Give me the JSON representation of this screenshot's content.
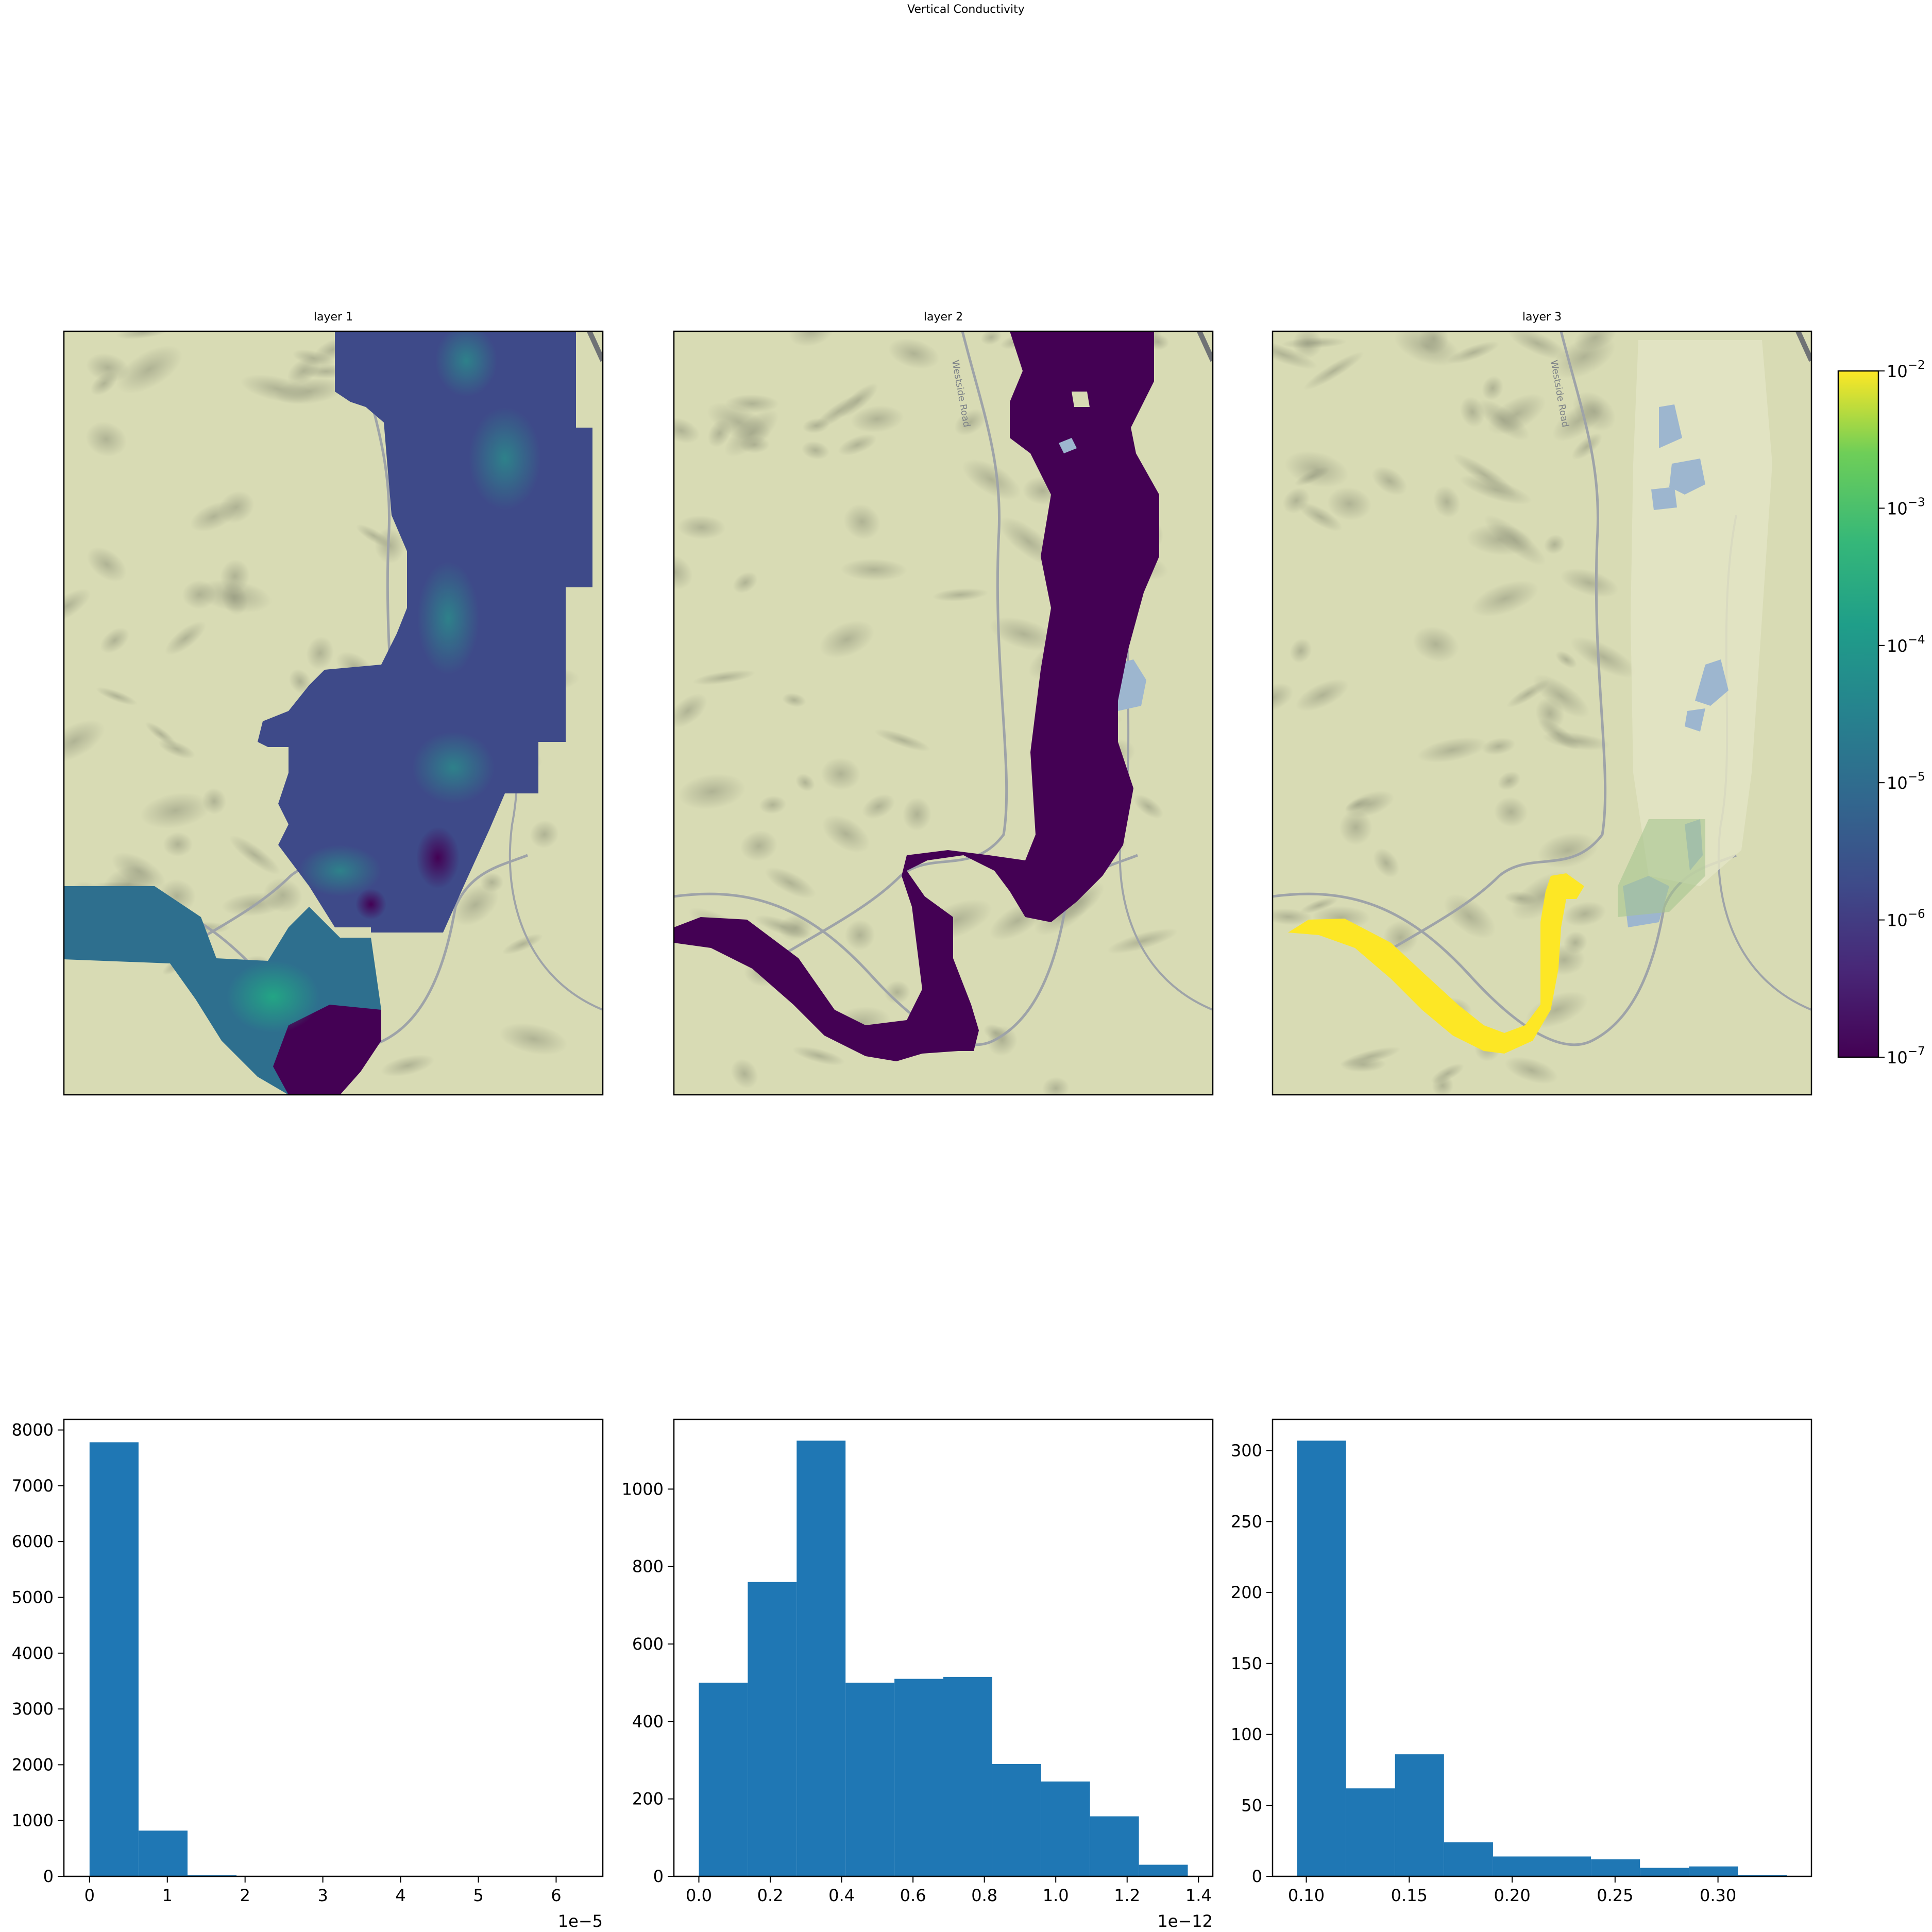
{
  "figure": {
    "title": "Vertical Conductivity"
  },
  "colors": {
    "map_bg": "#d8dbb4",
    "hill_shade": "#a9ad8f",
    "road": "#9ea3a8",
    "highway": "#6f7275",
    "water": "#9db6cf",
    "bar": "#1f77b4",
    "viridis_low": "#440154",
    "viridis_high": "#fde725"
  },
  "maps": [
    {
      "title": "layer 1"
    },
    {
      "title": "layer 2",
      "road_label": "Westside Road"
    },
    {
      "title": "layer 3",
      "road_label": "Westside Road"
    }
  ],
  "colorbar": {
    "scale": "log",
    "range": [
      1e-07,
      0.01
    ],
    "ticks": [
      {
        "value": 1e-07,
        "base": "10",
        "exp": "−7"
      },
      {
        "value": 1e-06,
        "base": "10",
        "exp": "−6"
      },
      {
        "value": 1e-05,
        "base": "10",
        "exp": "−5"
      },
      {
        "value": 0.0001,
        "base": "10",
        "exp": "−4"
      },
      {
        "value": 0.001,
        "base": "10",
        "exp": "−3"
      },
      {
        "value": 0.01,
        "base": "10",
        "exp": "−2"
      }
    ]
  },
  "chart_data": [
    {
      "type": "bar",
      "subtype": "histogram",
      "bin_edges": [
        0,
        6.3e-06,
        1.26e-05,
        1.89e-05
      ],
      "counts": [
        7780,
        820,
        20
      ],
      "xlim": [
        -3.3e-06,
        6.6e-05
      ],
      "ylim": [
        0,
        8190
      ],
      "xticks": [
        0,
        1,
        2,
        3,
        4,
        5,
        6
      ],
      "yticks": [
        0,
        1000,
        2000,
        3000,
        4000,
        5000,
        6000,
        7000,
        8000
      ],
      "x_offset_text": "1e−5",
      "x_tick_scale": 1e-05
    },
    {
      "type": "bar",
      "subtype": "histogram",
      "bin_edges": [
        0.0,
        0.137,
        0.274,
        0.411,
        0.548,
        0.685,
        0.822,
        0.959,
        1.096,
        1.233,
        1.37
      ],
      "counts": [
        500,
        760,
        1125,
        500,
        510,
        515,
        290,
        245,
        155,
        30
      ],
      "xlim": [
        -0.07,
        1.44
      ],
      "ylim": [
        0,
        1180
      ],
      "xticks": [
        0.0,
        0.2,
        0.4,
        0.6,
        0.8,
        1.0,
        1.2,
        1.4
      ],
      "xtick_labels": [
        "0.0",
        "0.2",
        "0.4",
        "0.6",
        "0.8",
        "1.0",
        "1.2",
        "1.4"
      ],
      "yticks": [
        0,
        200,
        400,
        600,
        800,
        1000
      ],
      "x_offset_text": "1e−12"
    },
    {
      "type": "bar",
      "subtype": "histogram",
      "bin_edges": [
        0.0955,
        0.1193,
        0.1431,
        0.1669,
        0.1907,
        0.2145,
        0.2383,
        0.2621,
        0.2859,
        0.3097,
        0.3335
      ],
      "counts": [
        307,
        62,
        86,
        24,
        14,
        14,
        12,
        6,
        7,
        1
      ],
      "xlim": [
        0.0836,
        0.3454
      ],
      "ylim": [
        0,
        322
      ],
      "xticks": [
        0.1,
        0.15,
        0.2,
        0.25,
        0.3
      ],
      "xtick_labels": [
        "0.10",
        "0.15",
        "0.20",
        "0.25",
        "0.30"
      ],
      "yticks": [
        0,
        50,
        100,
        150,
        200,
        250,
        300
      ]
    }
  ]
}
